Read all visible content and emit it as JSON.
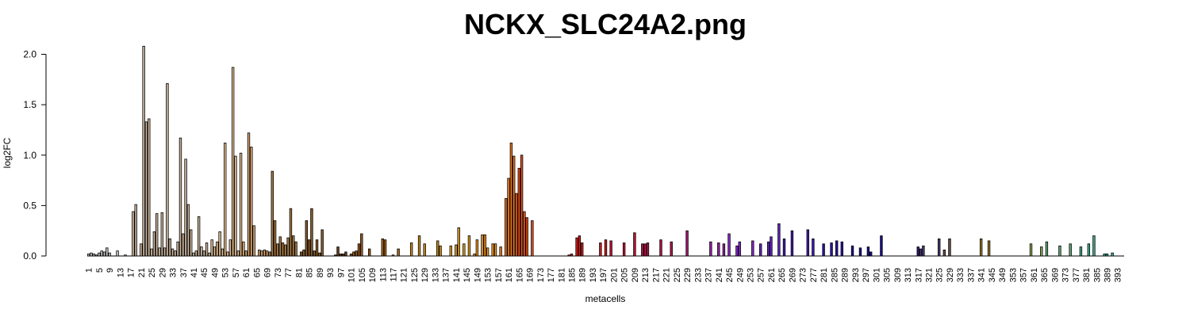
{
  "chart_data": {
    "type": "bar",
    "title": "NCKX_SLC24A2.png",
    "xlabel": "metacells",
    "ylabel": "log2FC",
    "ylim": [
      0,
      2.1
    ],
    "yticks": [
      "0.0",
      "0.5",
      "1.0",
      "1.5",
      "2.0"
    ],
    "ytick_values": [
      0,
      0.5,
      1.0,
      1.5,
      2.0
    ],
    "n": 395,
    "xtick_labels": [
      "1",
      "5",
      "9",
      "13",
      "17",
      "21",
      "25",
      "29",
      "33",
      "37",
      "41",
      "45",
      "49",
      "53",
      "57",
      "61",
      "65",
      "69",
      "73",
      "77",
      "81",
      "85",
      "89",
      "93",
      "97",
      "101",
      "105",
      "109",
      "113",
      "117",
      "121",
      "125",
      "129",
      "133",
      "137",
      "141",
      "145",
      "149",
      "153",
      "157",
      "161",
      "165",
      "169",
      "173",
      "177",
      "181",
      "185",
      "189",
      "193",
      "197",
      "201",
      "205",
      "209",
      "213",
      "217",
      "221",
      "225",
      "229",
      "233",
      "237",
      "241",
      "245",
      "249",
      "253",
      "257",
      "261",
      "265",
      "269",
      "273",
      "277",
      "281",
      "285",
      "289",
      "293",
      "297",
      "301",
      "305",
      "309",
      "313",
      "317",
      "321",
      "325",
      "329",
      "333",
      "337",
      "341",
      "345",
      "349",
      "353",
      "357",
      "361",
      "365",
      "369",
      "373",
      "377",
      "381",
      "385",
      "389",
      "393"
    ],
    "nonzero": [
      [
        1,
        0.02
      ],
      [
        2,
        0.03
      ],
      [
        3,
        0.02
      ],
      [
        4,
        0.01
      ],
      [
        5,
        0.03
      ],
      [
        6,
        0.05
      ],
      [
        7,
        0.04
      ],
      [
        8,
        0.08
      ],
      [
        9,
        0.03
      ],
      [
        12,
        0.05
      ],
      [
        15,
        0.01
      ],
      [
        18,
        0.44
      ],
      [
        19,
        0.51
      ],
      [
        21,
        0.12
      ],
      [
        22,
        2.08
      ],
      [
        23,
        1.33
      ],
      [
        24,
        1.36
      ],
      [
        25,
        0.07
      ],
      [
        26,
        0.24
      ],
      [
        27,
        0.42
      ],
      [
        28,
        0.08
      ],
      [
        29,
        0.43
      ],
      [
        30,
        0.08
      ],
      [
        31,
        1.71
      ],
      [
        32,
        0.17
      ],
      [
        33,
        0.07
      ],
      [
        34,
        0.05
      ],
      [
        35,
        0.14
      ],
      [
        36,
        1.17
      ],
      [
        37,
        0.22
      ],
      [
        38,
        0.96
      ],
      [
        39,
        0.51
      ],
      [
        40,
        0.26
      ],
      [
        41,
        0.03
      ],
      [
        42,
        0.05
      ],
      [
        43,
        0.39
      ],
      [
        44,
        0.09
      ],
      [
        45,
        0.05
      ],
      [
        46,
        0.13
      ],
      [
        47,
        0.03
      ],
      [
        48,
        0.16
      ],
      [
        49,
        0.09
      ],
      [
        50,
        0.14
      ],
      [
        51,
        0.24
      ],
      [
        52,
        0.07
      ],
      [
        53,
        1.12
      ],
      [
        54,
        0.04
      ],
      [
        55,
        0.16
      ],
      [
        56,
        1.87
      ],
      [
        57,
        0.99
      ],
      [
        58,
        0.05
      ],
      [
        59,
        1.02
      ],
      [
        60,
        0.14
      ],
      [
        61,
        0.05
      ],
      [
        62,
        1.22
      ],
      [
        63,
        1.08
      ],
      [
        64,
        0.3
      ],
      [
        66,
        0.06
      ],
      [
        67,
        0.05
      ],
      [
        68,
        0.06
      ],
      [
        69,
        0.05
      ],
      [
        70,
        0.04
      ],
      [
        71,
        0.84
      ],
      [
        72,
        0.35
      ],
      [
        73,
        0.12
      ],
      [
        74,
        0.19
      ],
      [
        75,
        0.13
      ],
      [
        76,
        0.11
      ],
      [
        77,
        0.18
      ],
      [
        78,
        0.47
      ],
      [
        79,
        0.2
      ],
      [
        80,
        0.14
      ],
      [
        82,
        0.04
      ],
      [
        83,
        0.06
      ],
      [
        84,
        0.35
      ],
      [
        85,
        0.16
      ],
      [
        86,
        0.47
      ],
      [
        87,
        0.05
      ],
      [
        88,
        0.16
      ],
      [
        89,
        0.03
      ],
      [
        90,
        0.26
      ],
      [
        95,
        0.01
      ],
      [
        96,
        0.09
      ],
      [
        97,
        0.02
      ],
      [
        98,
        0.02
      ],
      [
        99,
        0.04
      ],
      [
        101,
        0.02
      ],
      [
        102,
        0.04
      ],
      [
        103,
        0.05
      ],
      [
        104,
        0.12
      ],
      [
        105,
        0.22
      ],
      [
        108,
        0.07
      ],
      [
        113,
        0.17
      ],
      [
        114,
        0.16
      ],
      [
        117,
        0.01
      ],
      [
        119,
        0.07
      ],
      [
        124,
        0.13
      ],
      [
        127,
        0.2
      ],
      [
        129,
        0.12
      ],
      [
        134,
        0.15
      ],
      [
        135,
        0.1
      ],
      [
        139,
        0.1
      ],
      [
        141,
        0.11
      ],
      [
        142,
        0.28
      ],
      [
        144,
        0.12
      ],
      [
        146,
        0.2
      ],
      [
        148,
        0.02
      ],
      [
        149,
        0.16
      ],
      [
        151,
        0.21
      ],
      [
        152,
        0.21
      ],
      [
        153,
        0.08
      ],
      [
        155,
        0.12
      ],
      [
        156,
        0.12
      ],
      [
        158,
        0.09
      ],
      [
        160,
        0.57
      ],
      [
        161,
        0.77
      ],
      [
        162,
        1.12
      ],
      [
        163,
        0.99
      ],
      [
        164,
        0.62
      ],
      [
        165,
        0.87
      ],
      [
        166,
        1.0
      ],
      [
        167,
        0.44
      ],
      [
        168,
        0.38
      ],
      [
        170,
        0.35
      ],
      [
        184,
        0.01
      ],
      [
        185,
        0.02
      ],
      [
        187,
        0.18
      ],
      [
        188,
        0.2
      ],
      [
        189,
        0.13
      ],
      [
        196,
        0.13
      ],
      [
        198,
        0.16
      ],
      [
        200,
        0.15
      ],
      [
        205,
        0.13
      ],
      [
        209,
        0.23
      ],
      [
        212,
        0.12
      ],
      [
        213,
        0.12
      ],
      [
        214,
        0.13
      ],
      [
        219,
        0.16
      ],
      [
        223,
        0.14
      ],
      [
        229,
        0.25
      ],
      [
        238,
        0.14
      ],
      [
        241,
        0.13
      ],
      [
        243,
        0.12
      ],
      [
        245,
        0.22
      ],
      [
        248,
        0.1
      ],
      [
        249,
        0.14
      ],
      [
        254,
        0.15
      ],
      [
        257,
        0.12
      ],
      [
        260,
        0.14
      ],
      [
        261,
        0.19
      ],
      [
        264,
        0.32
      ],
      [
        266,
        0.17
      ],
      [
        269,
        0.25
      ],
      [
        275,
        0.26
      ],
      [
        277,
        0.17
      ],
      [
        281,
        0.12
      ],
      [
        284,
        0.13
      ],
      [
        286,
        0.15
      ],
      [
        288,
        0.14
      ],
      [
        292,
        0.1
      ],
      [
        295,
        0.08
      ],
      [
        298,
        0.09
      ],
      [
        299,
        0.04
      ],
      [
        303,
        0.2
      ],
      [
        317,
        0.09
      ],
      [
        318,
        0.07
      ],
      [
        319,
        0.1
      ],
      [
        325,
        0.17
      ],
      [
        327,
        0.06
      ],
      [
        329,
        0.17
      ],
      [
        341,
        0.17
      ],
      [
        344,
        0.15
      ],
      [
        360,
        0.12
      ],
      [
        364,
        0.09
      ],
      [
        366,
        0.14
      ],
      [
        371,
        0.1
      ],
      [
        375,
        0.12
      ],
      [
        379,
        0.09
      ],
      [
        382,
        0.12
      ],
      [
        384,
        0.2
      ],
      [
        388,
        0.02
      ],
      [
        389,
        0.02
      ],
      [
        391,
        0.03
      ]
    ],
    "colors": [
      [
        1,
        "#c8c8c8"
      ],
      [
        18,
        "#cdb79e"
      ],
      [
        48,
        "#e3bf92"
      ],
      [
        60,
        "#d9a46e"
      ],
      [
        70,
        "#a97c45"
      ],
      [
        82,
        "#8c5c28"
      ],
      [
        92,
        "#6b3e18"
      ],
      [
        100,
        "#9a5a1c"
      ],
      [
        112,
        "#a8671a"
      ],
      [
        124,
        "#cc8a1e"
      ],
      [
        136,
        "#e0a020"
      ],
      [
        148,
        "#f09a22"
      ],
      [
        158,
        "#f07a20"
      ],
      [
        164,
        "#e8521a"
      ],
      [
        176,
        "#e02c10"
      ],
      [
        184,
        "#d81818"
      ],
      [
        200,
        "#cc1030"
      ],
      [
        212,
        "#b8124a"
      ],
      [
        224,
        "#a81670"
      ],
      [
        232,
        "#9820a8"
      ],
      [
        244,
        "#8a28d0"
      ],
      [
        256,
        "#6424c8"
      ],
      [
        266,
        "#4418b8"
      ],
      [
        278,
        "#2c12a8"
      ],
      [
        290,
        "#1a0e90"
      ],
      [
        306,
        "#2a1878"
      ],
      [
        318,
        "#4a3a70"
      ],
      [
        326,
        "#6a5048"
      ],
      [
        338,
        "#9a7a2a"
      ],
      [
        348,
        "#a89040"
      ],
      [
        358,
        "#88a858"
      ],
      [
        366,
        "#60a878"
      ],
      [
        376,
        "#40b090"
      ],
      [
        386,
        "#30b8a0"
      ],
      [
        392,
        "#28c0b8"
      ]
    ]
  }
}
